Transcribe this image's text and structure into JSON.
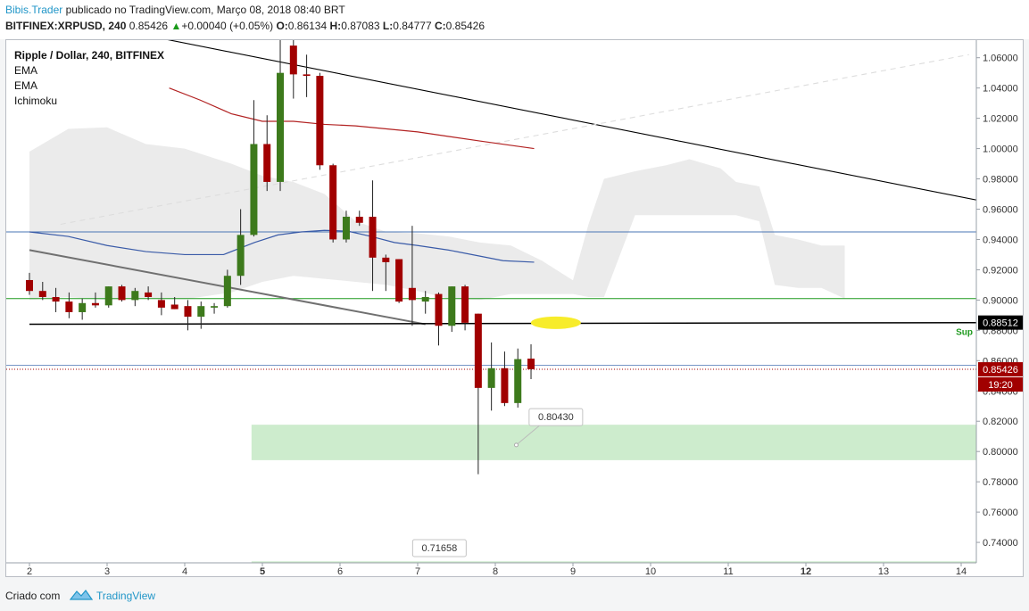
{
  "header": {
    "author": "Bibis.Trader",
    "published_text": " publicado no TradingView.com, Março 08, 2018 08:40 BRT",
    "symbol_line": {
      "symbol": "BITFINEX:XRPUSD, 240",
      "last": "0.85426",
      "change": "+0.00040 (+0.05%)",
      "o_label": "O:",
      "o_value": "0.86134",
      "h_label": "H:",
      "h_value": "0.87083",
      "l_label": "L:",
      "l_value": "0.84777",
      "c_label": "C:",
      "c_value": "0.85426"
    }
  },
  "legend": {
    "title": "Ripple / Dollar, 240, BITFINEX",
    "indicators": [
      "EMA",
      "EMA",
      "Ichimoku"
    ]
  },
  "chart_data": {
    "type": "candlestick",
    "title": "Ripple / Dollar, 240, BITFINEX",
    "x_tick_labels": [
      "2",
      "3",
      "4",
      "5",
      "6",
      "7",
      "8",
      "9",
      "10",
      "11",
      "12",
      "13",
      "14"
    ],
    "y_tick_labels": [
      "1.06000",
      "1.04000",
      "1.02000",
      "1.00000",
      "0.98000",
      "0.96000",
      "0.94000",
      "0.92000",
      "0.90000",
      "0.88000",
      "0.86000",
      "0.84000",
      "0.82000",
      "0.80000",
      "0.78000",
      "0.76000",
      "0.74000"
    ],
    "ylim": [
      0.7265,
      1.0716
    ],
    "colors": {
      "up": "#3d7a1c",
      "down": "#a10000",
      "ema_fast": "#3a5ba8",
      "ema_slow": "#b22222",
      "cloud": "#ebebeb",
      "zone": "#cdeccd",
      "sup_line": "#000000",
      "h_line_green": "#1e9a1e",
      "h_line_blue": "#4a74b4",
      "marker": "#f7ec2a",
      "price_label": "#a10000"
    },
    "candles": [
      {
        "t": 2.0,
        "o": 0.9132,
        "h": 0.918,
        "l": 0.9035,
        "c": 0.906
      },
      {
        "t": 2.17,
        "o": 0.906,
        "h": 0.912,
        "l": 0.9,
        "c": 0.902
      },
      {
        "t": 2.34,
        "o": 0.902,
        "h": 0.908,
        "l": 0.892,
        "c": 0.899
      },
      {
        "t": 2.51,
        "o": 0.899,
        "h": 0.905,
        "l": 0.888,
        "c": 0.892
      },
      {
        "t": 2.68,
        "o": 0.892,
        "h": 0.901,
        "l": 0.887,
        "c": 0.898
      },
      {
        "t": 2.85,
        "o": 0.898,
        "h": 0.905,
        "l": 0.895,
        "c": 0.8965
      },
      {
        "t": 3.02,
        "o": 0.8965,
        "h": 0.909,
        "l": 0.895,
        "c": 0.909
      },
      {
        "t": 3.19,
        "o": 0.909,
        "h": 0.91,
        "l": 0.899,
        "c": 0.9
      },
      {
        "t": 3.36,
        "o": 0.9,
        "h": 0.908,
        "l": 0.896,
        "c": 0.906
      },
      {
        "t": 3.53,
        "o": 0.905,
        "h": 0.909,
        "l": 0.9,
        "c": 0.902
      },
      {
        "t": 3.7,
        "o": 0.9,
        "h": 0.905,
        "l": 0.89,
        "c": 0.895
      },
      {
        "t": 3.87,
        "o": 0.897,
        "h": 0.902,
        "l": 0.894,
        "c": 0.894
      },
      {
        "t": 4.04,
        "o": 0.896,
        "h": 0.9,
        "l": 0.88,
        "c": 0.889
      },
      {
        "t": 4.21,
        "o": 0.889,
        "h": 0.899,
        "l": 0.881,
        "c": 0.896
      },
      {
        "t": 4.38,
        "o": 0.895,
        "h": 0.898,
        "l": 0.891,
        "c": 0.896
      },
      {
        "t": 4.55,
        "o": 0.896,
        "h": 0.92,
        "l": 0.895,
        "c": 0.916
      },
      {
        "t": 4.72,
        "o": 0.916,
        "h": 0.96,
        "l": 0.91,
        "c": 0.943
      },
      {
        "t": 4.89,
        "o": 0.943,
        "h": 1.032,
        "l": 0.942,
        "c": 1.003
      },
      {
        "t": 5.06,
        "o": 1.003,
        "h": 1.022,
        "l": 0.972,
        "c": 0.978
      },
      {
        "t": 5.23,
        "o": 0.978,
        "h": 1.081,
        "l": 0.972,
        "c": 1.05
      },
      {
        "t": 5.4,
        "o": 1.068,
        "h": 1.08,
        "l": 1.033,
        "c": 1.049
      },
      {
        "t": 5.57,
        "o": 1.049,
        "h": 1.062,
        "l": 1.034,
        "c": 1.048
      },
      {
        "t": 5.74,
        "o": 1.048,
        "h": 1.05,
        "l": 0.986,
        "c": 0.989
      },
      {
        "t": 5.91,
        "o": 0.989,
        "h": 0.99,
        "l": 0.938,
        "c": 0.94
      },
      {
        "t": 6.08,
        "o": 0.94,
        "h": 0.959,
        "l": 0.938,
        "c": 0.955
      },
      {
        "t": 6.25,
        "o": 0.955,
        "h": 0.959,
        "l": 0.949,
        "c": 0.951
      },
      {
        "t": 6.42,
        "o": 0.955,
        "h": 0.979,
        "l": 0.906,
        "c": 0.928
      },
      {
        "t": 6.59,
        "o": 0.928,
        "h": 0.93,
        "l": 0.906,
        "c": 0.925
      },
      {
        "t": 6.76,
        "o": 0.927,
        "h": 0.927,
        "l": 0.898,
        "c": 0.899
      },
      {
        "t": 6.93,
        "o": 0.908,
        "h": 0.949,
        "l": 0.883,
        "c": 0.9
      },
      {
        "t": 7.1,
        "o": 0.899,
        "h": 0.906,
        "l": 0.891,
        "c": 0.902
      },
      {
        "t": 7.27,
        "o": 0.904,
        "h": 0.905,
        "l": 0.87,
        "c": 0.883
      },
      {
        "t": 7.44,
        "o": 0.883,
        "h": 0.909,
        "l": 0.879,
        "c": 0.909
      },
      {
        "t": 7.61,
        "o": 0.909,
        "h": 0.91,
        "l": 0.88,
        "c": 0.885
      },
      {
        "t": 7.78,
        "o": 0.891,
        "h": 0.891,
        "l": 0.785,
        "c": 0.842
      },
      {
        "t": 7.95,
        "o": 0.842,
        "h": 0.872,
        "l": 0.827,
        "c": 0.855
      },
      {
        "t": 8.12,
        "o": 0.855,
        "h": 0.866,
        "l": 0.83,
        "c": 0.832
      },
      {
        "t": 8.29,
        "o": 0.832,
        "h": 0.868,
        "l": 0.829,
        "c": 0.861
      },
      {
        "t": 8.46,
        "o": 0.8613,
        "h": 0.8708,
        "l": 0.8478,
        "c": 0.8543
      }
    ],
    "ema_fast": [
      [
        2,
        0.945
      ],
      [
        2.5,
        0.942
      ],
      [
        3,
        0.936
      ],
      [
        3.5,
        0.932
      ],
      [
        4,
        0.93
      ],
      [
        4.5,
        0.93
      ],
      [
        4.9,
        0.938
      ],
      [
        5.2,
        0.943
      ],
      [
        5.5,
        0.945
      ],
      [
        5.8,
        0.946
      ],
      [
        6.1,
        0.9455
      ],
      [
        6.4,
        0.942
      ],
      [
        6.7,
        0.938
      ],
      [
        7.0,
        0.936
      ],
      [
        7.4,
        0.933
      ],
      [
        7.8,
        0.929
      ],
      [
        8.1,
        0.926
      ],
      [
        8.5,
        0.925
      ]
    ],
    "ema_slow": [
      [
        3.8,
        1.04
      ],
      [
        4.2,
        1.032
      ],
      [
        4.6,
        1.023
      ],
      [
        5.0,
        1.018
      ],
      [
        5.4,
        1.018
      ],
      [
        5.8,
        1.016
      ],
      [
        6.2,
        1.015
      ],
      [
        6.6,
        1.013
      ],
      [
        7.0,
        1.011
      ],
      [
        7.4,
        1.008
      ],
      [
        7.8,
        1.005
      ],
      [
        8.5,
        1.0
      ]
    ],
    "cloud": [
      [
        2,
        0.998,
        0.9
      ],
      [
        2.5,
        1.013,
        0.902
      ],
      [
        3,
        1.014,
        0.9
      ],
      [
        3.5,
        1.003,
        0.901
      ],
      [
        4,
        1.0,
        0.9005
      ],
      [
        4.6,
        0.99,
        0.905
      ],
      [
        5.0,
        0.982,
        0.912
      ],
      [
        5.4,
        0.978,
        0.916
      ],
      [
        5.8,
        0.97,
        0.914
      ],
      [
        6.2,
        0.952,
        0.912
      ],
      [
        6.6,
        0.945,
        0.91
      ],
      [
        7.0,
        0.944,
        0.906
      ],
      [
        7.4,
        0.942,
        0.901
      ],
      [
        7.8,
        0.938,
        0.9
      ],
      [
        8.2,
        0.936,
        0.904
      ],
      [
        8.6,
        0.926,
        0.904
      ],
      [
        9.0,
        0.913,
        0.904
      ],
      [
        9.2,
        0.95,
        0.902
      ],
      [
        9.4,
        0.98,
        0.902
      ],
      [
        9.8,
        0.985,
        0.956
      ],
      [
        10.2,
        0.989,
        0.956
      ],
      [
        10.5,
        0.993,
        0.956
      ],
      [
        10.9,
        0.987,
        0.956
      ],
      [
        11.1,
        0.978,
        0.956
      ],
      [
        11.4,
        0.975,
        0.952
      ],
      [
        11.6,
        0.943,
        0.91
      ],
      [
        11.9,
        0.94,
        0.908
      ],
      [
        12.2,
        0.936,
        0.908
      ],
      [
        12.5,
        0.936,
        0.901
      ]
    ],
    "trendlines": [
      {
        "name": "desc-upper",
        "color": "#000000",
        "x": [
          2.1,
          14.2
        ],
        "y": [
          1.089,
          0.966
        ]
      },
      {
        "name": "desc-lower",
        "color": "#707070",
        "x": [
          2.0,
          7.1
        ],
        "y": [
          0.933,
          0.884
        ]
      },
      {
        "name": "support",
        "color": "#000000",
        "x": [
          2.0,
          14.2
        ],
        "y": [
          0.884,
          0.8851
        ]
      },
      {
        "name": "dashed-rise",
        "color": "#dddddd",
        "x": [
          2.4,
          14.1
        ],
        "y": [
          0.95,
          1.062
        ]
      }
    ],
    "h_lines": [
      {
        "name": "blue",
        "y": 0.945
      },
      {
        "name": "green",
        "y": 0.901
      },
      {
        "name": "blue-thin",
        "y": 0.857
      }
    ],
    "zones": [
      {
        "x": [
          4.86,
          14.2
        ],
        "y": [
          0.8177,
          0.7943
        ]
      },
      {
        "x": [
          4.86,
          14.2
        ],
        "y": [
          0.7275,
          0.7248
        ]
      }
    ],
    "marker": {
      "x": 8.78,
      "y": 0.885
    },
    "annotations": [
      {
        "text": "0.80430",
        "x": 8.78,
        "y": 0.823,
        "point_x": 8.27,
        "point_y": 0.8043
      },
      {
        "text": "0.71658",
        "x": 7.28,
        "y": 0.7365
      }
    ],
    "sup_label": "Sup",
    "price_labels": [
      {
        "text": "0.88512",
        "value": 0.88512,
        "kind": "black"
      },
      {
        "text": "0.85426",
        "value": 0.85426,
        "kind": "red"
      },
      {
        "text": "19:20",
        "value": 0.84426,
        "kind": "red"
      }
    ]
  },
  "footer": {
    "criado": "Criado com",
    "brand": "TradingView"
  }
}
